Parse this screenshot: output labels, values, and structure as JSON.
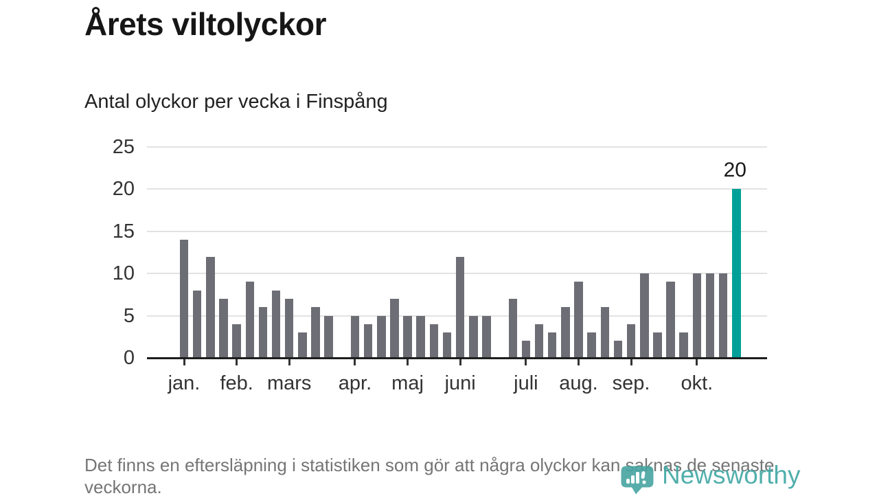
{
  "header": {
    "title": "Årets viltolyckor",
    "subtitle": "Antal olyckor per vecka i Finspång"
  },
  "chart_data": {
    "type": "bar",
    "title": "Årets viltolyckor",
    "subtitle": "Antal olyckor per vecka i Finspång",
    "x_unit": "vecka",
    "ylim": [
      0,
      25
    ],
    "yticks": [
      0,
      5,
      10,
      15,
      20,
      25
    ],
    "grid": true,
    "values": [
      14,
      8,
      12,
      7,
      4,
      9,
      6,
      8,
      7,
      3,
      6,
      5,
      null,
      5,
      4,
      5,
      7,
      5,
      5,
      4,
      3,
      12,
      5,
      5,
      null,
      7,
      2,
      4,
      3,
      6,
      9,
      3,
      6,
      2,
      4,
      10,
      3,
      9,
      3,
      10,
      10,
      10,
      20
    ],
    "month_ticks": [
      {
        "label": "jan.",
        "week": 1
      },
      {
        "label": "feb.",
        "week": 5
      },
      {
        "label": "mars",
        "week": 9
      },
      {
        "label": "apr.",
        "week": 14
      },
      {
        "label": "maj",
        "week": 18
      },
      {
        "label": "juni",
        "week": 22
      },
      {
        "label": "juli",
        "week": 27
      },
      {
        "label": "aug.",
        "week": 31
      },
      {
        "label": "sep.",
        "week": 35
      },
      {
        "label": "okt.",
        "week": 40
      }
    ],
    "highlight_index": 42,
    "highlight_label": "20",
    "colors": {
      "bar": "#6d6d75",
      "highlight": "#00a098",
      "gridline": "#e2e2e2",
      "axis": "#1d1d1d"
    },
    "legend_position": "none"
  },
  "footer": {
    "note": "Det finns en eftersläpning i statistiken som gör att några olyckor kan saknas de senaste veckorna.",
    "logo_text": "Newsworthy",
    "logo_color": "#3fa7a3"
  }
}
